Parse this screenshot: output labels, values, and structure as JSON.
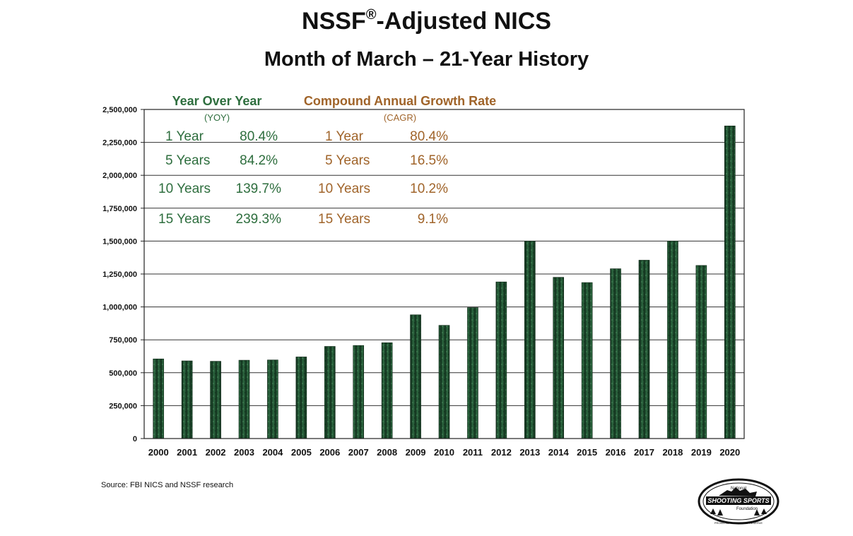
{
  "title_main": "NSSF",
  "title_reg": "®",
  "title_rest": "-Adjusted NICS",
  "subtitle": "Month of March – 21-Year History",
  "source": "Source: FBI NICS and NSSF research",
  "logo": {
    "line1": "National",
    "line2": "SHOOTING SPORTS",
    "line3": "Foundation",
    "tagline": "PROMOTE • PROTECT • PRESERVE"
  },
  "colors": {
    "bar_dark": "#163d24",
    "bar_mid": "#2f6b43",
    "yoy": "#2e6e3e",
    "cagr": "#a0642a",
    "grid": "#333333"
  },
  "chart_data": {
    "type": "bar",
    "categories": [
      "2000",
      "2001",
      "2002",
      "2003",
      "2004",
      "2005",
      "2006",
      "2007",
      "2008",
      "2009",
      "2010",
      "2011",
      "2012",
      "2013",
      "2014",
      "2015",
      "2016",
      "2017",
      "2018",
      "2019",
      "2020"
    ],
    "values": [
      605000,
      590000,
      587000,
      595000,
      597000,
      620000,
      700000,
      707000,
      728000,
      940000,
      860000,
      995000,
      1190000,
      1500000,
      1225000,
      1185000,
      1290000,
      1355000,
      1500000,
      1315000,
      2375000
    ],
    "ylim": [
      0,
      2500000
    ],
    "yticks": [
      0,
      250000,
      500000,
      750000,
      1000000,
      1250000,
      1500000,
      1750000,
      2000000,
      2250000,
      2500000
    ],
    "ytick_labels": [
      "0",
      "250,000",
      "500,000",
      "750,000",
      "1,000,000",
      "1,250,000",
      "1,500,000",
      "1,750,000",
      "2,000,000",
      "2,250,000",
      "2,500,000"
    ],
    "grid": true,
    "annotations": {
      "yoy": {
        "title": "Year Over Year",
        "abbr": "(YOY)",
        "rows": [
          {
            "period": "1 Year",
            "value": "80.4%"
          },
          {
            "period": "5 Years",
            "value": "84.2%"
          },
          {
            "period": "10 Years",
            "value": "139.7%"
          },
          {
            "period": "15 Years",
            "value": "239.3%"
          }
        ]
      },
      "cagr": {
        "title": "Compound Annual Growth Rate",
        "abbr": "(CAGR)",
        "rows": [
          {
            "period": "1 Year",
            "value": "80.4%"
          },
          {
            "period": "5 Years",
            "value": "16.5%"
          },
          {
            "period": "10 Years",
            "value": "10.2%"
          },
          {
            "period": "15 Years",
            "value": "9.1%"
          }
        ]
      }
    }
  }
}
